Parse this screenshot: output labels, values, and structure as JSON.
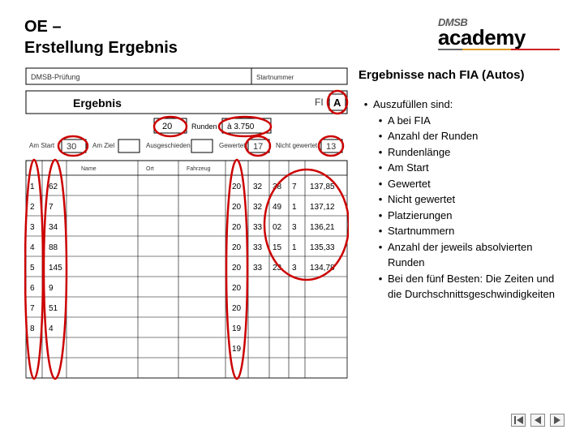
{
  "title_line1": "OE –",
  "title_line2": "Erstellung Ergebnis",
  "logo": {
    "brand": "DMSB",
    "sub": "academy"
  },
  "right_heading": "Ergebnisse nach FIA (Autos)",
  "main_bullet": "Auszufüllen sind:",
  "sub_bullets": [
    "A bei FIA",
    "Anzahl der Runden",
    "Rundenlänge",
    "Am Start",
    "Gewertet",
    "Nicht gewertet",
    "Platzierungen",
    "Startnummern",
    "Anzahl der jeweils absolvierten Runden",
    "Bei den fünf Besten: Die Zeiten und die Durch­schnittsgeschwindigkeiten"
  ],
  "form": {
    "header_left": "DMSB-Prüfung",
    "header_right": "Startnummer",
    "title": "Ergebnis",
    "fia_label": "FI",
    "fia_value": "A",
    "runden": "20",
    "runden_label": "Runden",
    "zu": "à 3.750",
    "labels": {
      "am_start": "Am Start",
      "am_ziel": "Am Ziel",
      "ausgeschieden": "Ausgeschieden",
      "gewertet": "Gewertet",
      "nicht_gewertet": "Nicht gewertet",
      "platzierung": "",
      "name": "Name",
      "ort": "Ort",
      "fahrzeug": "Fahrzeug",
      "runden_col": ""
    },
    "am_start": "30",
    "gewertet": "17",
    "nicht_gewertet": "13",
    "rows": [
      {
        "p": "1",
        "nr": "62",
        "rd": "20",
        "t1": "32",
        "t2": "38",
        "t3": "7",
        "g": "137,85"
      },
      {
        "p": "2",
        "nr": "7",
        "rd": "20",
        "t1": "32",
        "t2": "49",
        "t3": "1",
        "g": "137,12"
      },
      {
        "p": "3",
        "nr": "34",
        "rd": "20",
        "t1": "33",
        "t2": "02",
        "t3": "3",
        "g": "136,21"
      },
      {
        "p": "4",
        "nr": "88",
        "rd": "20",
        "t1": "33",
        "t2": "15",
        "t3": "1",
        "g": "135,33"
      },
      {
        "p": "5",
        "nr": "145",
        "rd": "20",
        "t1": "33",
        "t2": "23",
        "t3": "3",
        "g": "134,78"
      },
      {
        "p": "6",
        "nr": "9",
        "rd": "20",
        "t1": "",
        "t2": "",
        "t3": "",
        "g": ""
      },
      {
        "p": "7",
        "nr": "51",
        "rd": "20",
        "t1": "",
        "t2": "",
        "t3": "",
        "g": ""
      },
      {
        "p": "8",
        "nr": "4",
        "rd": "19",
        "t1": "",
        "t2": "",
        "t3": "",
        "g": ""
      },
      {
        "p": "",
        "nr": "",
        "rd": "19",
        "t1": "",
        "t2": "",
        "t3": "",
        "g": ""
      },
      {
        "p": "",
        "nr": "",
        "rd": "",
        "t1": "",
        "t2": "",
        "t3": "",
        "g": ""
      }
    ],
    "circle_color": "#cc0000",
    "line_color": "#000000",
    "text_color": "#333333",
    "bg": "#ffffff"
  }
}
